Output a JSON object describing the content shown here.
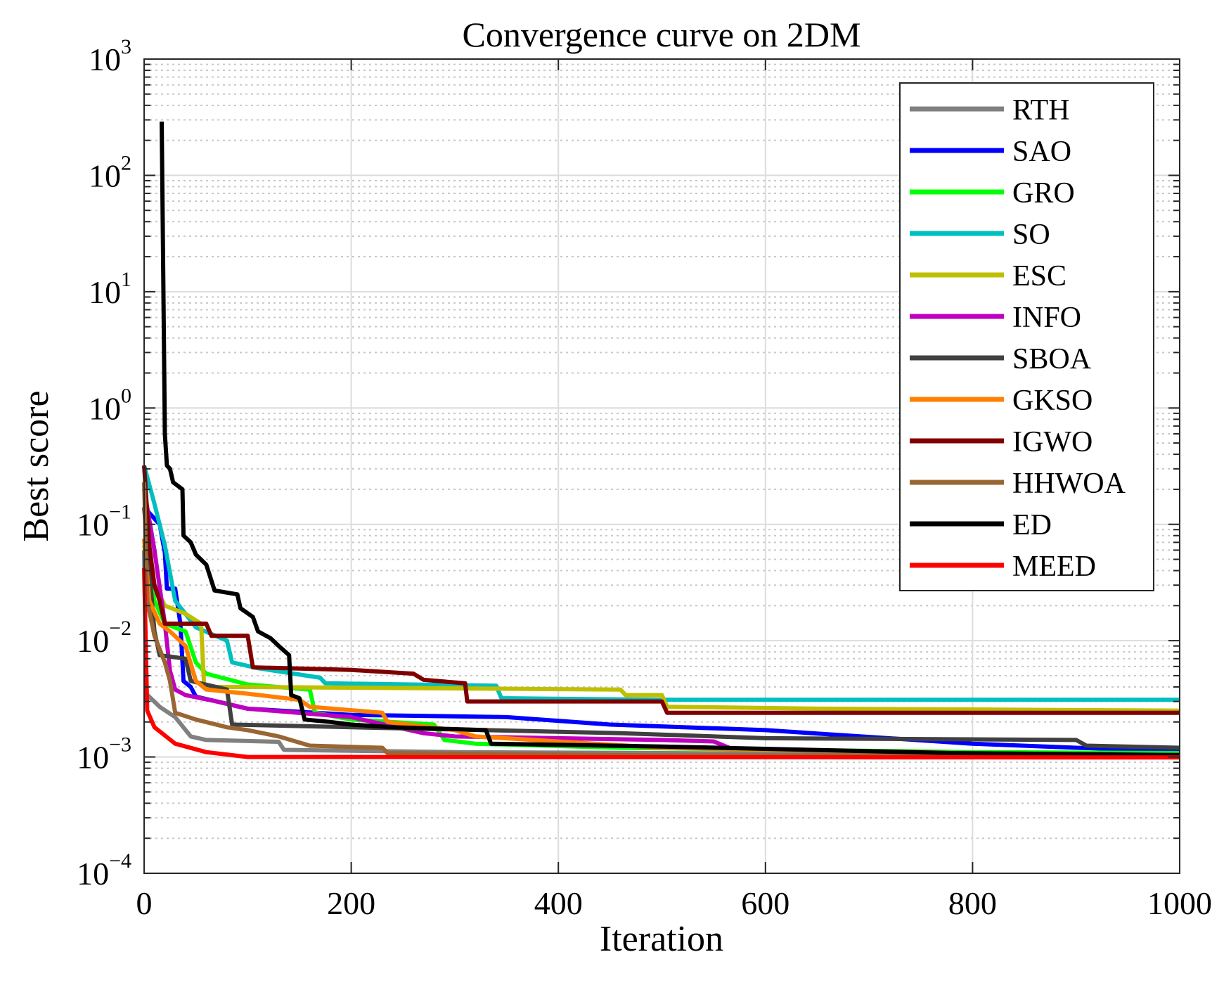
{
  "chart_data": {
    "type": "line",
    "title": "Convergence curve on 2DM",
    "xlabel": "Iteration",
    "ylabel": "Best score",
    "xlim": [
      0,
      1000
    ],
    "ylim": [
      0.0001,
      1000
    ],
    "yscale": "log",
    "grid": true,
    "legend_position": "top-right",
    "x_ticks": [
      "0",
      "200",
      "400",
      "600",
      "800",
      "1000"
    ],
    "x_tick_values": [
      0,
      200,
      400,
      600,
      800,
      1000
    ],
    "y_ticks": [
      {
        "base": "10",
        "exp": "3",
        "value": 1000
      },
      {
        "base": "10",
        "exp": "2",
        "value": 100
      },
      {
        "base": "10",
        "exp": "1",
        "value": 10
      },
      {
        "base": "10",
        "exp": "0",
        "value": 1
      },
      {
        "base": "10",
        "exp": "−1",
        "value": 0.1
      },
      {
        "base": "10",
        "exp": "−2",
        "value": 0.01
      },
      {
        "base": "10",
        "exp": "−3",
        "value": 0.001
      },
      {
        "base": "10",
        "exp": "−4",
        "value": 0.0001
      }
    ],
    "series": [
      {
        "name": "RTH",
        "color": "#808080",
        "points": [
          [
            0,
            0.06
          ],
          [
            2,
            0.0035
          ],
          [
            15,
            0.0027
          ],
          [
            30,
            0.0022
          ],
          [
            45,
            0.0015
          ],
          [
            60,
            0.0014
          ],
          [
            130,
            0.00135
          ],
          [
            135,
            0.00115
          ],
          [
            300,
            0.0011
          ],
          [
            600,
            0.00107
          ],
          [
            1000,
            0.00105
          ]
        ]
      },
      {
        "name": "SAO",
        "color": "#0000ff",
        "points": [
          [
            0,
            0.14
          ],
          [
            15,
            0.1
          ],
          [
            20,
            0.057
          ],
          [
            22,
            0.028
          ],
          [
            30,
            0.028
          ],
          [
            35,
            0.014
          ],
          [
            38,
            0.0045
          ],
          [
            45,
            0.004
          ],
          [
            50,
            0.0033
          ],
          [
            70,
            0.003
          ],
          [
            100,
            0.0026
          ],
          [
            200,
            0.0023
          ],
          [
            350,
            0.0022
          ],
          [
            450,
            0.0019
          ],
          [
            600,
            0.0017
          ],
          [
            800,
            0.0013
          ],
          [
            900,
            0.0012
          ],
          [
            1000,
            0.00113
          ]
        ]
      },
      {
        "name": "GRO",
        "color": "#00ff00",
        "points": [
          [
            0,
            0.066
          ],
          [
            10,
            0.022
          ],
          [
            20,
            0.014
          ],
          [
            40,
            0.012
          ],
          [
            50,
            0.0065
          ],
          [
            60,
            0.0052
          ],
          [
            100,
            0.0042
          ],
          [
            160,
            0.0038
          ],
          [
            165,
            0.0024
          ],
          [
            200,
            0.0021
          ],
          [
            280,
            0.0019
          ],
          [
            290,
            0.0014
          ],
          [
            320,
            0.0013
          ],
          [
            460,
            0.0012
          ],
          [
            800,
            0.0011
          ],
          [
            1000,
            0.00108
          ]
        ]
      },
      {
        "name": "SO",
        "color": "#00bfbf",
        "points": [
          [
            0,
            0.32
          ],
          [
            10,
            0.15
          ],
          [
            20,
            0.066
          ],
          [
            30,
            0.022
          ],
          [
            40,
            0.017
          ],
          [
            50,
            0.013
          ],
          [
            80,
            0.01
          ],
          [
            85,
            0.0065
          ],
          [
            110,
            0.0058
          ],
          [
            170,
            0.0048
          ],
          [
            175,
            0.0043
          ],
          [
            340,
            0.0041
          ],
          [
            345,
            0.0032
          ],
          [
            500,
            0.0031
          ],
          [
            1000,
            0.0031
          ]
        ]
      },
      {
        "name": "ESC",
        "color": "#bfbf00",
        "points": [
          [
            0,
            0.075
          ],
          [
            10,
            0.03
          ],
          [
            20,
            0.02
          ],
          [
            40,
            0.017
          ],
          [
            55,
            0.014
          ],
          [
            58,
            0.004
          ],
          [
            100,
            0.004
          ],
          [
            460,
            0.0038
          ],
          [
            465,
            0.0034
          ],
          [
            500,
            0.0034
          ],
          [
            505,
            0.0027
          ],
          [
            650,
            0.0026
          ],
          [
            1000,
            0.0025
          ]
        ]
      },
      {
        "name": "INFO",
        "color": "#bf00bf",
        "points": [
          [
            0,
            0.2
          ],
          [
            10,
            0.06
          ],
          [
            20,
            0.014
          ],
          [
            25,
            0.0055
          ],
          [
            30,
            0.0038
          ],
          [
            40,
            0.0034
          ],
          [
            70,
            0.003
          ],
          [
            100,
            0.0026
          ],
          [
            200,
            0.0022
          ],
          [
            270,
            0.0016
          ],
          [
            300,
            0.0015
          ],
          [
            500,
            0.0014
          ],
          [
            550,
            0.00136
          ],
          [
            565,
            0.0012
          ]
        ]
      },
      {
        "name": "SBOA",
        "color": "#404040",
        "points": [
          [
            0,
            0.14
          ],
          [
            10,
            0.012
          ],
          [
            15,
            0.0075
          ],
          [
            40,
            0.007
          ],
          [
            45,
            0.0045
          ],
          [
            80,
            0.0038
          ],
          [
            85,
            0.0019
          ],
          [
            200,
            0.0018
          ],
          [
            330,
            0.0017
          ],
          [
            460,
            0.0016
          ],
          [
            600,
            0.00145
          ],
          [
            900,
            0.0014
          ],
          [
            910,
            0.00125
          ],
          [
            1000,
            0.0012
          ]
        ]
      },
      {
        "name": "GKSO",
        "color": "#ff8000",
        "points": [
          [
            0,
            0.075
          ],
          [
            5,
            0.022
          ],
          [
            15,
            0.014
          ],
          [
            25,
            0.012
          ],
          [
            40,
            0.009
          ],
          [
            50,
            0.0045
          ],
          [
            60,
            0.0038
          ],
          [
            100,
            0.0035
          ],
          [
            150,
            0.0031
          ],
          [
            160,
            0.0027
          ],
          [
            230,
            0.0024
          ],
          [
            235,
            0.002
          ],
          [
            300,
            0.0017
          ],
          [
            320,
            0.0015
          ],
          [
            500,
            0.0012
          ],
          [
            750,
            0.0011
          ],
          [
            780,
            0.00108
          ]
        ]
      },
      {
        "name": "IGWO",
        "color": "#800000",
        "points": [
          [
            0,
            0.32
          ],
          [
            5,
            0.066
          ],
          [
            10,
            0.03
          ],
          [
            15,
            0.022
          ],
          [
            20,
            0.014
          ],
          [
            60,
            0.014
          ],
          [
            65,
            0.011
          ],
          [
            100,
            0.011
          ],
          [
            105,
            0.0059
          ],
          [
            200,
            0.0056
          ],
          [
            260,
            0.0052
          ],
          [
            270,
            0.0046
          ],
          [
            310,
            0.0043
          ],
          [
            312,
            0.003
          ],
          [
            500,
            0.003
          ],
          [
            505,
            0.0024
          ],
          [
            1000,
            0.0024
          ]
        ]
      },
      {
        "name": "HHWOA",
        "color": "#996633",
        "points": [
          [
            0,
            0.23
          ],
          [
            3,
            0.022
          ],
          [
            10,
            0.011
          ],
          [
            20,
            0.0065
          ],
          [
            25,
            0.0045
          ],
          [
            30,
            0.0024
          ],
          [
            50,
            0.0021
          ],
          [
            80,
            0.0018
          ],
          [
            100,
            0.0017
          ],
          [
            130,
            0.0015
          ],
          [
            160,
            0.00125
          ],
          [
            230,
            0.0012
          ],
          [
            235,
            0.00108
          ],
          [
            500,
            0.00103
          ],
          [
            1000,
            0.00103
          ]
        ]
      },
      {
        "name": "ED",
        "color": "#000000",
        "points": [
          [
            17,
            290
          ],
          [
            20,
            0.6
          ],
          [
            22,
            0.32
          ],
          [
            25,
            0.3
          ],
          [
            28,
            0.23
          ],
          [
            37,
            0.2
          ],
          [
            38,
            0.08
          ],
          [
            45,
            0.07
          ],
          [
            50,
            0.055
          ],
          [
            60,
            0.045
          ],
          [
            68,
            0.027
          ],
          [
            90,
            0.025
          ],
          [
            93,
            0.019
          ],
          [
            105,
            0.016
          ],
          [
            110,
            0.012
          ],
          [
            122,
            0.0105
          ],
          [
            130,
            0.009
          ],
          [
            140,
            0.0075
          ],
          [
            142,
            0.0034
          ],
          [
            150,
            0.0032
          ],
          [
            155,
            0.0021
          ],
          [
            180,
            0.002
          ],
          [
            200,
            0.0019
          ],
          [
            240,
            0.0018
          ],
          [
            330,
            0.0017
          ],
          [
            335,
            0.0013
          ],
          [
            500,
            0.00123
          ],
          [
            780,
            0.00108
          ],
          [
            1000,
            0.00104
          ]
        ]
      },
      {
        "name": "MEED",
        "color": "#ff0000",
        "points": [
          [
            0,
            0.042
          ],
          [
            3,
            0.0025
          ],
          [
            10,
            0.0018
          ],
          [
            30,
            0.0013
          ],
          [
            60,
            0.0011
          ],
          [
            100,
            0.001
          ],
          [
            1000,
            0.00099
          ]
        ]
      }
    ]
  }
}
